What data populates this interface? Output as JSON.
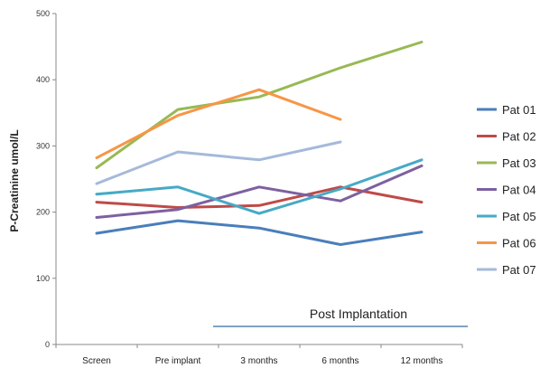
{
  "chart_data": {
    "type": "line",
    "ylabel": "P-Creatinine umol/L",
    "ylim": [
      0,
      500
    ],
    "yticks": [
      0,
      100,
      200,
      300,
      400,
      500
    ],
    "categories": [
      "Screen",
      "Pre implant",
      "3 months",
      "6 months",
      "12 months"
    ],
    "grid": false,
    "legend_position": "right",
    "series": [
      {
        "name": "Pat 01",
        "color": "#4a7ebb",
        "values": [
          168,
          187,
          176,
          151,
          170
        ]
      },
      {
        "name": "Pat 02",
        "color": "#be4b48",
        "values": [
          215,
          207,
          210,
          238,
          215
        ]
      },
      {
        "name": "Pat 03",
        "color": "#98b954",
        "values": [
          267,
          355,
          374,
          418,
          457
        ]
      },
      {
        "name": "Pat 04",
        "color": "#7d60a0",
        "values": [
          192,
          204,
          238,
          217,
          270
        ]
      },
      {
        "name": "Pat 05",
        "color": "#46aac5",
        "values": [
          227,
          238,
          198,
          235,
          279
        ]
      },
      {
        "name": "Pat 06",
        "color": "#f79646",
        "values": [
          282,
          346,
          385,
          340,
          null
        ]
      },
      {
        "name": "Pat 07",
        "color": "#a5b9da",
        "values": [
          243,
          291,
          279,
          306,
          null
        ]
      }
    ],
    "annotation": {
      "text": "Post Implantation",
      "color": "#7ea3c7",
      "x_from": "3 months",
      "value": 30
    }
  }
}
